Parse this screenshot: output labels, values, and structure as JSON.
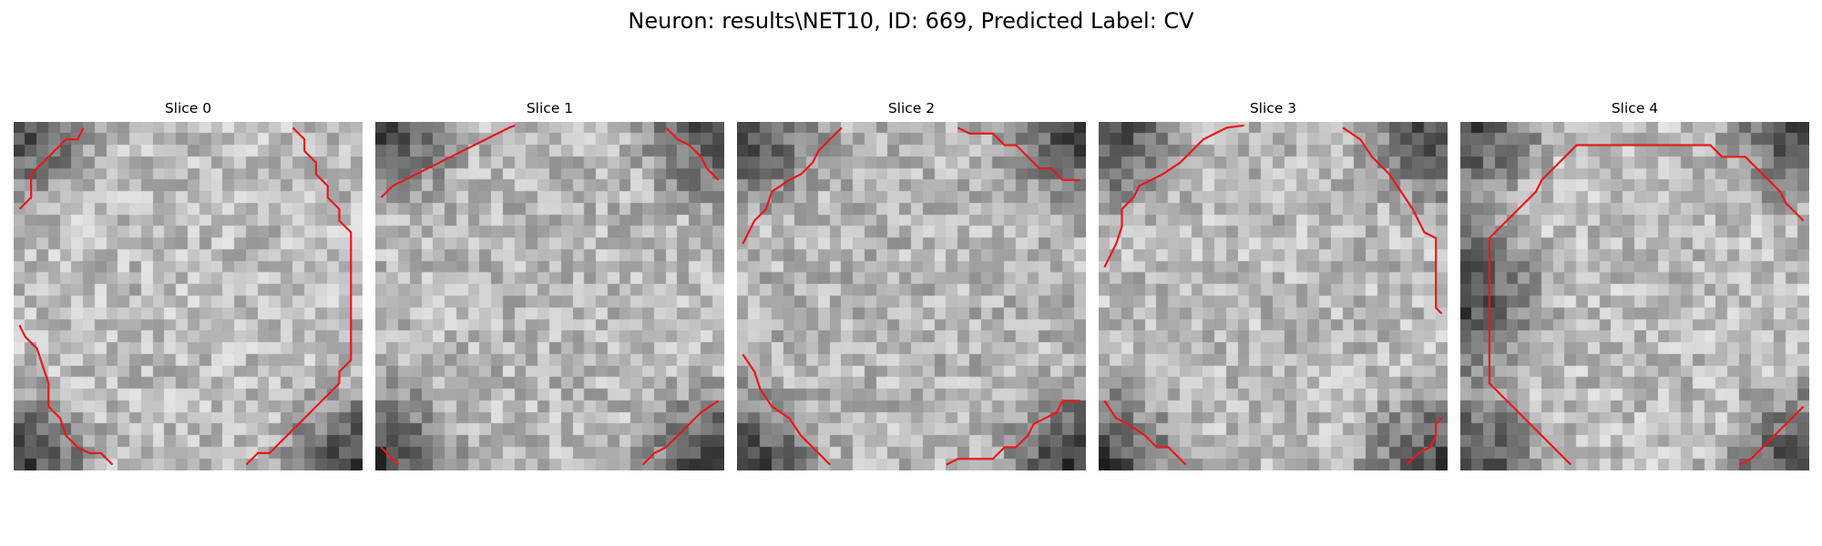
{
  "title": "Neuron: results\\NET10, ID: 669, Predicted Label: CV",
  "colors": {
    "contour": "#e8191c",
    "background": "#ffffff"
  },
  "grid_size": 30,
  "slices": [
    {
      "label": "Slice 0",
      "center_bright": 0.74,
      "dark_corners": [
        "top-left",
        "bottom-left",
        "bottom-right"
      ],
      "contours": [
        [
          [
            0.5,
            7.5
          ],
          [
            1.5,
            6.5
          ],
          [
            1.5,
            4.5
          ],
          [
            2.5,
            3.5
          ],
          [
            3.5,
            2.5
          ],
          [
            4.5,
            1.5
          ],
          [
            5.5,
            1.5
          ],
          [
            6.0,
            0.5
          ]
        ],
        [
          [
            24.0,
            0.5
          ],
          [
            25.0,
            1.5
          ],
          [
            25.0,
            2.5
          ],
          [
            26.0,
            3.5
          ],
          [
            26.0,
            4.5
          ],
          [
            27.0,
            5.5
          ],
          [
            27.0,
            6.5
          ],
          [
            28.0,
            7.5
          ],
          [
            28.0,
            8.5
          ],
          [
            29.0,
            9.5
          ],
          [
            29.0,
            20.5
          ],
          [
            28.0,
            21.5
          ],
          [
            28.0,
            22.5
          ],
          [
            27.0,
            23.5
          ],
          [
            26.0,
            24.5
          ],
          [
            25.0,
            25.5
          ],
          [
            24.0,
            26.5
          ],
          [
            23.0,
            27.5
          ],
          [
            22.0,
            28.5
          ],
          [
            21.0,
            28.5
          ],
          [
            20.0,
            29.5
          ]
        ],
        [
          [
            0.5,
            17.5
          ],
          [
            1.0,
            18.5
          ],
          [
            2.0,
            19.5
          ],
          [
            2.5,
            21.0
          ],
          [
            3.0,
            22.5
          ],
          [
            3.0,
            24.5
          ],
          [
            4.0,
            25.5
          ],
          [
            4.5,
            27.0
          ],
          [
            5.5,
            28.0
          ],
          [
            6.5,
            28.5
          ],
          [
            7.5,
            28.5
          ],
          [
            8.0,
            29.0
          ],
          [
            8.5,
            29.5
          ]
        ]
      ]
    },
    {
      "label": "Slice 1",
      "center_bright": 0.72,
      "dark_corners": [
        "top-left",
        "bottom-left",
        "bottom-right",
        "top-right"
      ],
      "contours": [
        [
          [
            0.5,
            6.5
          ],
          [
            1.5,
            5.5
          ],
          [
            2.5,
            5.0
          ],
          [
            3.5,
            4.5
          ],
          [
            4.5,
            4.0
          ],
          [
            5.5,
            3.5
          ],
          [
            6.5,
            3.0
          ],
          [
            7.5,
            2.5
          ],
          [
            8.5,
            2.0
          ],
          [
            9.5,
            1.5
          ],
          [
            10.5,
            1.0
          ],
          [
            11.5,
            0.5
          ],
          [
            12.0,
            0.3
          ]
        ],
        [
          [
            25.0,
            0.5
          ],
          [
            26.0,
            1.5
          ],
          [
            27.0,
            2.0
          ],
          [
            28.0,
            3.0
          ],
          [
            28.5,
            4.0
          ],
          [
            29.5,
            5.0
          ]
        ],
        [
          [
            0.5,
            28.0
          ],
          [
            1.5,
            29.0
          ],
          [
            2.0,
            29.5
          ]
        ],
        [
          [
            23.0,
            29.5
          ],
          [
            24.0,
            28.5
          ],
          [
            25.0,
            28.0
          ],
          [
            26.0,
            27.0
          ],
          [
            27.0,
            26.0
          ],
          [
            28.0,
            25.0
          ],
          [
            29.5,
            24.0
          ]
        ]
      ]
    },
    {
      "label": "Slice 2",
      "center_bright": 0.71,
      "dark_corners": [
        "top-left",
        "bottom-left",
        "bottom-right",
        "top-right"
      ],
      "contours": [
        [
          [
            0.5,
            10.5
          ],
          [
            1.0,
            9.5
          ],
          [
            1.5,
            8.5
          ],
          [
            2.5,
            7.5
          ],
          [
            3.0,
            6.0
          ],
          [
            4.5,
            5.0
          ],
          [
            5.5,
            4.5
          ],
          [
            6.5,
            3.5
          ],
          [
            7.0,
            2.5
          ],
          [
            8.0,
            1.5
          ],
          [
            9.0,
            0.5
          ]
        ],
        [
          [
            19.0,
            0.5
          ],
          [
            20.0,
            1.0
          ],
          [
            22.0,
            1.0
          ],
          [
            23.0,
            2.0
          ],
          [
            24.0,
            2.0
          ],
          [
            25.0,
            3.0
          ],
          [
            26.0,
            4.0
          ],
          [
            27.0,
            4.0
          ],
          [
            28.0,
            5.0
          ],
          [
            29.5,
            5.0
          ]
        ],
        [
          [
            0.5,
            20.0
          ],
          [
            1.5,
            21.5
          ],
          [
            2.0,
            23.0
          ],
          [
            3.0,
            24.5
          ],
          [
            4.5,
            25.5
          ],
          [
            5.5,
            27.0
          ],
          [
            6.5,
            28.0
          ],
          [
            7.5,
            29.0
          ],
          [
            8.0,
            29.5
          ]
        ],
        [
          [
            18.0,
            29.5
          ],
          [
            19.0,
            29.0
          ],
          [
            22.0,
            29.0
          ],
          [
            23.0,
            28.0
          ],
          [
            24.0,
            28.0
          ],
          [
            25.0,
            27.0
          ],
          [
            25.5,
            26.0
          ],
          [
            26.5,
            25.5
          ],
          [
            27.5,
            25.0
          ],
          [
            28.0,
            24.0
          ],
          [
            29.5,
            24.0
          ]
        ]
      ]
    },
    {
      "label": "Slice 3",
      "center_bright": 0.73,
      "dark_corners": [
        "top-left",
        "bottom-left",
        "bottom-right",
        "top-right"
      ],
      "contours": [
        [
          [
            0.5,
            12.5
          ],
          [
            1.0,
            11.5
          ],
          [
            1.5,
            10.5
          ],
          [
            2.0,
            9.0
          ],
          [
            2.0,
            7.5
          ],
          [
            3.0,
            6.5
          ],
          [
            3.5,
            5.5
          ],
          [
            4.5,
            5.0
          ],
          [
            5.5,
            4.5
          ],
          [
            7.0,
            3.5
          ],
          [
            8.0,
            2.5
          ],
          [
            9.0,
            1.5
          ],
          [
            10.0,
            1.0
          ],
          [
            11.0,
            0.5
          ],
          [
            12.5,
            0.3
          ]
        ],
        [
          [
            21.0,
            0.5
          ],
          [
            22.5,
            1.5
          ],
          [
            23.5,
            3.0
          ],
          [
            25.0,
            4.5
          ],
          [
            26.0,
            6.0
          ],
          [
            27.0,
            7.5
          ],
          [
            28.0,
            9.5
          ],
          [
            29.0,
            10.0
          ],
          [
            29.0,
            16.0
          ],
          [
            29.5,
            16.5
          ]
        ],
        [
          [
            0.5,
            24.0
          ],
          [
            1.5,
            25.5
          ],
          [
            2.5,
            26.0
          ],
          [
            4.0,
            27.0
          ],
          [
            5.0,
            28.0
          ],
          [
            6.0,
            28.0
          ],
          [
            7.0,
            29.0
          ],
          [
            7.5,
            29.5
          ]
        ],
        [
          [
            26.5,
            29.5
          ],
          [
            27.5,
            28.5
          ],
          [
            28.5,
            28.0
          ],
          [
            29.0,
            27.0
          ],
          [
            29.0,
            26.0
          ],
          [
            29.5,
            25.5
          ]
        ]
      ]
    },
    {
      "label": "Slice 4",
      "center_bright": 0.74,
      "dark_corners": [
        "top-left",
        "bottom-left",
        "bottom-right",
        "top-right",
        "left-edge"
      ],
      "contours": [
        [
          [
            9.5,
            29.5
          ],
          [
            8.5,
            28.5
          ],
          [
            7.5,
            27.5
          ],
          [
            6.5,
            26.5
          ],
          [
            5.5,
            25.5
          ],
          [
            4.5,
            24.5
          ],
          [
            3.5,
            23.5
          ],
          [
            2.5,
            22.5
          ],
          [
            2.5,
            10.0
          ],
          [
            3.5,
            9.0
          ],
          [
            4.5,
            8.0
          ],
          [
            5.5,
            7.0
          ],
          [
            6.5,
            6.0
          ],
          [
            7.0,
            5.0
          ],
          [
            8.0,
            4.0
          ],
          [
            9.0,
            3.0
          ],
          [
            10.0,
            2.0
          ],
          [
            21.5,
            2.0
          ],
          [
            22.5,
            3.0
          ],
          [
            24.5,
            3.0
          ],
          [
            25.5,
            4.0
          ],
          [
            26.5,
            5.0
          ],
          [
            27.5,
            6.0
          ],
          [
            28.0,
            7.0
          ],
          [
            29.5,
            8.5
          ]
        ],
        [
          [
            24.0,
            29.5
          ],
          [
            25.0,
            29.0
          ],
          [
            26.0,
            28.0
          ],
          [
            27.0,
            27.0
          ],
          [
            28.0,
            26.0
          ],
          [
            29.5,
            24.5
          ]
        ]
      ]
    }
  ]
}
